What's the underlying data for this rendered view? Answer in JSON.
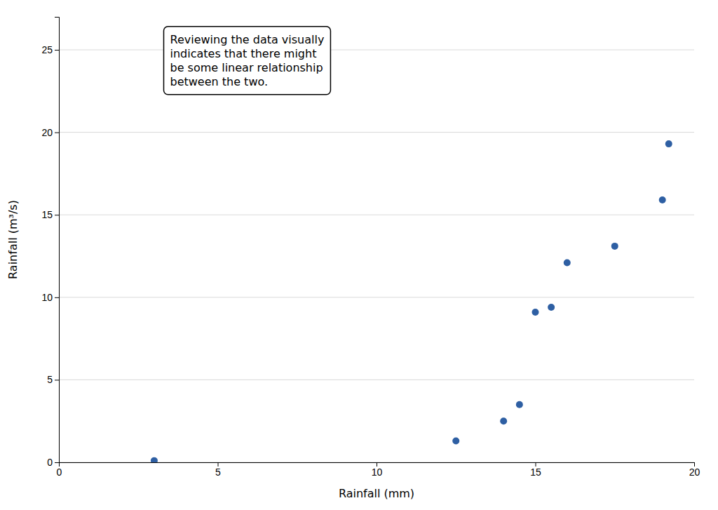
{
  "chart_data": {
    "type": "scatter",
    "x": [
      3,
      12.5,
      14,
      14.5,
      15,
      15.5,
      16,
      17.5,
      19,
      19.2
    ],
    "y": [
      0.1,
      1.3,
      2.5,
      3.5,
      9.1,
      9.4,
      12.1,
      13.1,
      15.9,
      19.3
    ],
    "xlabel": "Rainfall (mm)",
    "ylabel": "Rainfall (m³/s)",
    "xlim": [
      0,
      20
    ],
    "ylim": [
      0,
      27
    ],
    "xticks": [
      0,
      5,
      10,
      15,
      20
    ],
    "yticks": [
      0,
      5,
      10,
      15,
      20,
      25
    ],
    "color": "#2E5FA3",
    "grid": true,
    "annotations": [
      "Reviewing the data visually\nindicates that there might\nbe some linear relationship\nbetween the two."
    ]
  }
}
